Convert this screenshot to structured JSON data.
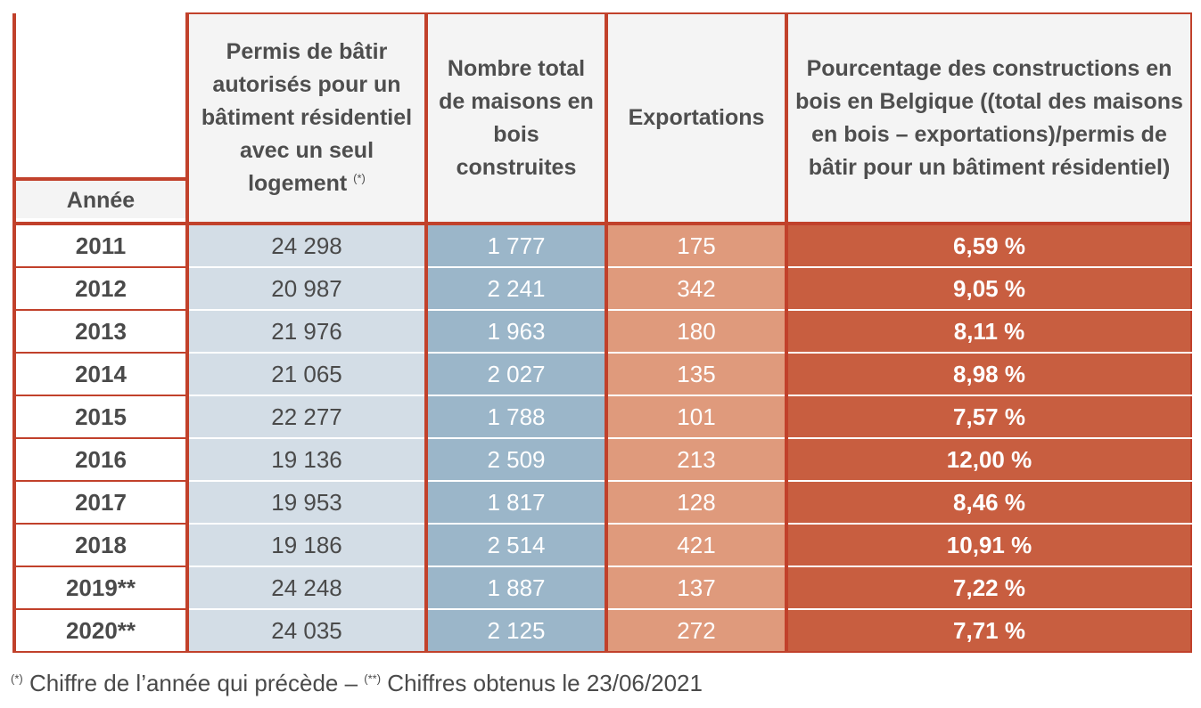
{
  "table": {
    "headers": {
      "year": "Année",
      "permits_main": "Permis de bâtir autorisés pour un bâtiment résidentiel avec un seul logement",
      "permits_sup": "(*)",
      "houses": "Nombre total de maisons en bois construites",
      "exports": "Exportations",
      "percentage": "Pourcentage des constructions en bois en Belgique ((total des maisons en bois – exportations)/permis de bâtir pour un bâtiment résidentiel)"
    },
    "rows": [
      {
        "year": "2011",
        "permits": "24 298",
        "houses": "1 777",
        "exports": "175",
        "pct": "6,59 %"
      },
      {
        "year": "2012",
        "permits": "20 987",
        "houses": "2 241",
        "exports": "342",
        "pct": "9,05 %"
      },
      {
        "year": "2013",
        "permits": "21 976",
        "houses": "1 963",
        "exports": "180",
        "pct": "8,11 %"
      },
      {
        "year": "2014",
        "permits": "21 065",
        "houses": "2 027",
        "exports": "135",
        "pct": "8,98 %"
      },
      {
        "year": "2015",
        "permits": "22 277",
        "houses": "1 788",
        "exports": "101",
        "pct": "7,57 %"
      },
      {
        "year": "2016",
        "permits": "19 136",
        "houses": "2 509",
        "exports": "213",
        "pct": "12,00 %"
      },
      {
        "year": "2017",
        "permits": "19 953",
        "houses": "1 817",
        "exports": "128",
        "pct": "8,46 %"
      },
      {
        "year": "2018",
        "permits": "19 186",
        "houses": "2 514",
        "exports": "421",
        "pct": "10,91 %"
      },
      {
        "year": "2019**",
        "permits": "24 248",
        "houses": "1 887",
        "exports": "137",
        "pct": "7,22 %"
      },
      {
        "year": "2020**",
        "permits": "24 035",
        "houses": "2 125",
        "exports": "272",
        "pct": "7,71 %"
      }
    ]
  },
  "footnote": {
    "mark1": "(*)",
    "text1": " Chiffre de l’année qui précède – ",
    "mark2": "(**)",
    "text2": " Chiffres obtenus le 23/06/2021"
  },
  "colors": {
    "border": "#c1412b",
    "permits_bg": "#d3dde6",
    "houses_bg": "#9bb6c9",
    "exports_bg": "#df9a7c",
    "pct_bg": "#c85e40"
  }
}
